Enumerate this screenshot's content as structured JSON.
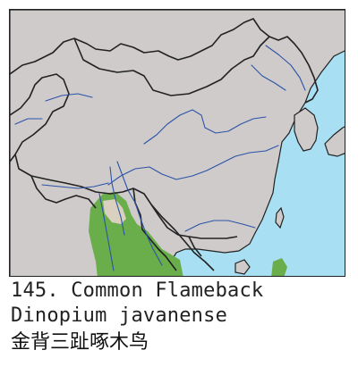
{
  "map": {
    "colors": {
      "sea": "#a9dff2",
      "land": "#cfcbcb",
      "border": "#222222",
      "river": "#2c53a8",
      "range": "#69ae4a",
      "range_inner": "#d9d0c0"
    }
  },
  "caption": {
    "line1": "145. Common Flameback",
    "line2": "Dinopium javanense",
    "line3": "金背三趾啄木鸟"
  }
}
